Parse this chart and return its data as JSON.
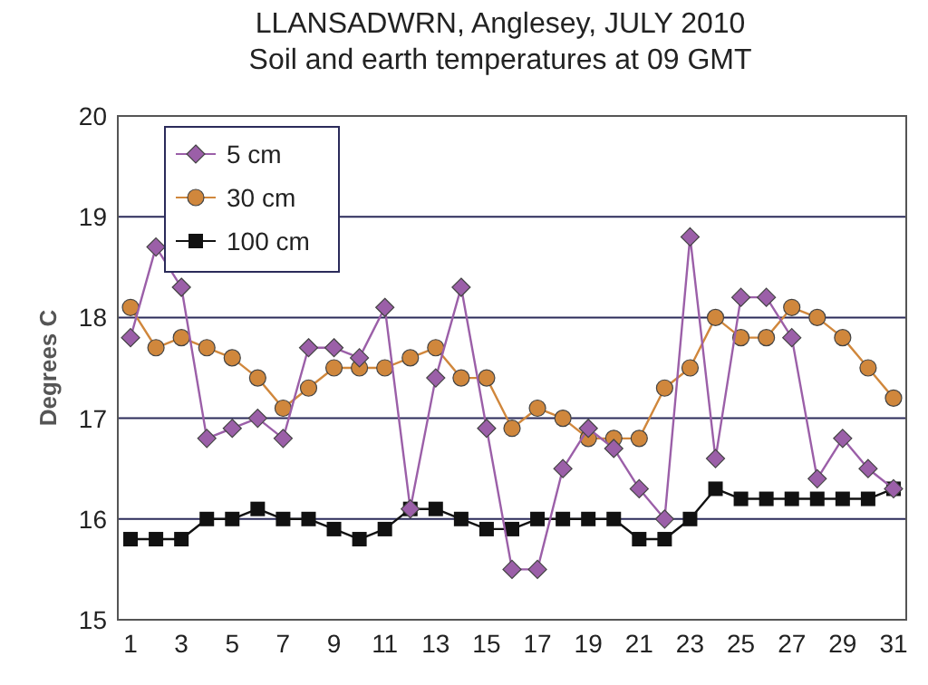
{
  "chart_data": {
    "type": "line",
    "title": "LLANSADWRN, Anglesey, JULY 2010",
    "subtitle": "Soil and earth temperatures at 09 GMT",
    "ylabel": "Degrees C",
    "x": [
      1,
      2,
      3,
      4,
      5,
      6,
      7,
      8,
      9,
      10,
      11,
      12,
      13,
      14,
      15,
      16,
      17,
      18,
      19,
      20,
      21,
      22,
      23,
      24,
      25,
      26,
      27,
      28,
      29,
      30,
      31
    ],
    "xlim": [
      0.5,
      31.5
    ],
    "xticks": [
      1,
      3,
      5,
      7,
      9,
      11,
      13,
      15,
      17,
      19,
      21,
      23,
      25,
      27,
      29,
      31
    ],
    "ylim": [
      15,
      20
    ],
    "yticks": [
      15,
      16,
      17,
      18,
      19,
      20
    ],
    "grid": "y",
    "legend": "top left",
    "series": [
      {
        "name": "5 cm",
        "color": "#9b5fa8",
        "marker": "diamond",
        "values": [
          17.8,
          18.7,
          18.3,
          16.8,
          16.9,
          17.0,
          16.8,
          17.7,
          17.7,
          17.6,
          18.1,
          16.1,
          17.4,
          18.3,
          16.9,
          15.5,
          15.5,
          16.5,
          16.9,
          16.7,
          16.3,
          16.0,
          18.8,
          16.6,
          18.2,
          18.2,
          17.8,
          16.4,
          16.8,
          16.5,
          16.3
        ]
      },
      {
        "name": "30 cm",
        "color": "#d0873c",
        "marker": "circle",
        "values": [
          18.1,
          17.7,
          17.8,
          17.7,
          17.6,
          17.4,
          17.1,
          17.3,
          17.5,
          17.5,
          17.5,
          17.6,
          17.7,
          17.4,
          17.4,
          16.9,
          17.1,
          17.0,
          16.8,
          16.8,
          16.8,
          17.3,
          17.5,
          18.0,
          17.8,
          17.8,
          18.1,
          18.0,
          17.8,
          17.5,
          17.2
        ]
      },
      {
        "name": "100 cm",
        "color": "#111111",
        "marker": "square",
        "values": [
          15.8,
          15.8,
          15.8,
          16.0,
          16.0,
          16.1,
          16.0,
          16.0,
          15.9,
          15.8,
          15.9,
          16.1,
          16.1,
          16.0,
          15.9,
          15.9,
          16.0,
          16.0,
          16.0,
          16.0,
          15.8,
          15.8,
          16.0,
          16.3,
          16.2,
          16.2,
          16.2,
          16.2,
          16.2,
          16.2,
          16.3
        ]
      }
    ]
  }
}
